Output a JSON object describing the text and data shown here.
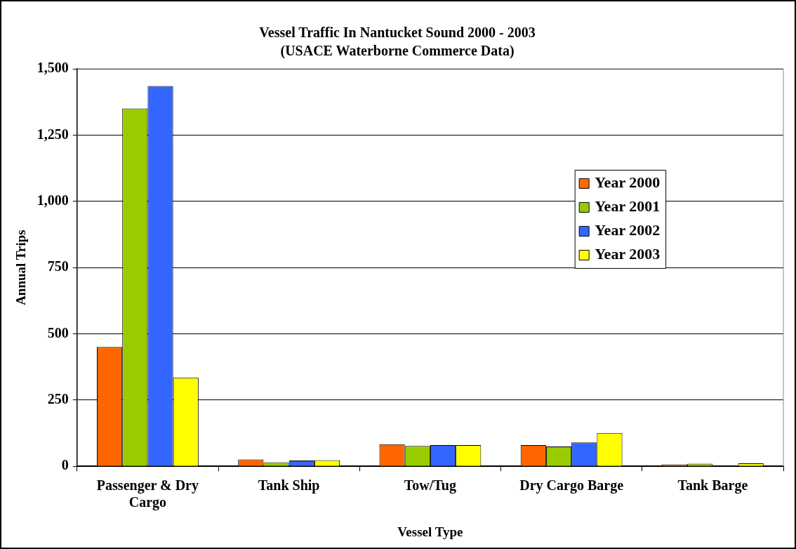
{
  "chart_data": {
    "type": "bar",
    "title": "Vessel Traffic In Nantucket Sound 2000 - 2003",
    "subtitle": "(USACE Waterborne Commerce Data)",
    "xlabel": "Vessel Type",
    "ylabel": "Annual Trips",
    "categories": [
      "Passenger & Dry Cargo",
      "Tank Ship",
      "Tow/Tug",
      "Dry Cargo Barge",
      "Tank Barge"
    ],
    "series": [
      {
        "name": "Year 2000",
        "color": "#ff6600",
        "values": [
          450,
          26,
          83,
          80,
          7
        ]
      },
      {
        "name": "Year 2001",
        "color": "#99cc00",
        "values": [
          1350,
          15,
          77,
          75,
          10
        ]
      },
      {
        "name": "Year 2002",
        "color": "#3366ff",
        "values": [
          1435,
          22,
          80,
          90,
          null
        ]
      },
      {
        "name": "Year 2003",
        "color": "#ffff00",
        "values": [
          335,
          23,
          80,
          126,
          11
        ]
      }
    ],
    "ylim": [
      0,
      1500
    ],
    "yticks": [
      {
        "value": 0,
        "label": "0"
      },
      {
        "value": 250,
        "label": "250"
      },
      {
        "value": 500,
        "label": "500"
      },
      {
        "value": 750,
        "label": "750"
      },
      {
        "value": 1000,
        "label": "1,000"
      },
      {
        "value": 1250,
        "label": "1,250"
      },
      {
        "value": 1500,
        "label": "1,500"
      }
    ],
    "grid": "y",
    "legend": "right"
  }
}
